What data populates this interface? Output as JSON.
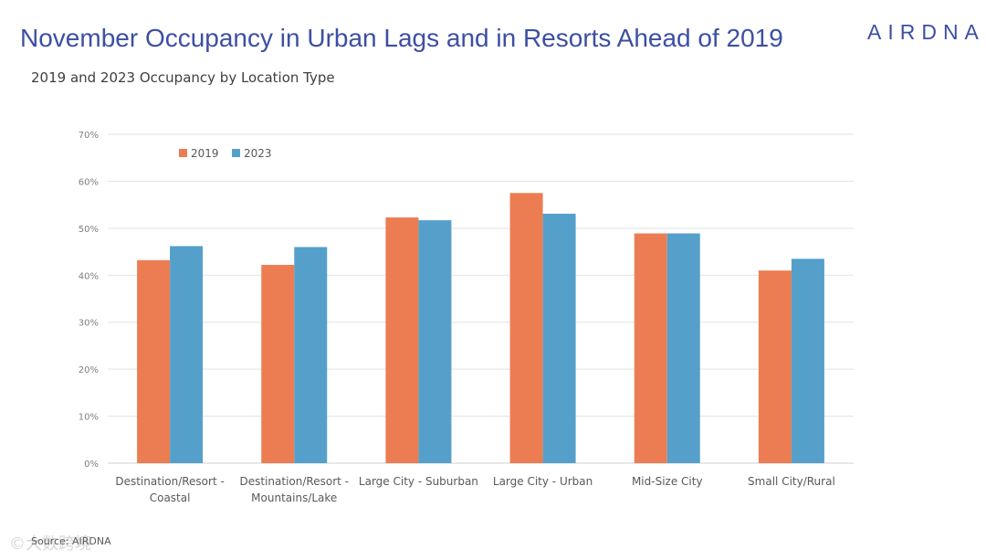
{
  "header": {
    "title": "November Occupancy in Urban Lags and in Resorts Ahead of 2019",
    "logo": "AIRDNA",
    "subtitle": "2019 and 2023 Occupancy by Location Type"
  },
  "footer": {
    "source": "Source: AIRDNA",
    "watermark": "©大数跨境"
  },
  "colors": {
    "title": "#3d4fa3",
    "series_2019": "#ec7d52",
    "series_2023": "#55a0cb",
    "grid": "#e3e3e3",
    "tick": "#7f7f7f"
  },
  "chart_data": {
    "type": "bar",
    "title": "2019 and 2023 Occupancy by Location Type",
    "xlabel": "",
    "ylabel": "",
    "ylim": [
      0,
      70
    ],
    "yticks": [
      0,
      10,
      20,
      30,
      40,
      50,
      60,
      70
    ],
    "ytick_labels": [
      "0%",
      "10%",
      "20%",
      "30%",
      "40%",
      "50%",
      "60%",
      "70%"
    ],
    "grid": true,
    "legend_position": "top-left",
    "categories": [
      [
        "Destination/Resort -",
        "Coastal"
      ],
      [
        "Destination/Resort -",
        "Mountains/Lake"
      ],
      [
        "Large City - Suburban"
      ],
      [
        "Large City - Urban"
      ],
      [
        "Mid-Size City"
      ],
      [
        "Small City/Rural"
      ]
    ],
    "series": [
      {
        "name": "2019",
        "color": "#ec7d52",
        "values": [
          43.2,
          42.2,
          52.3,
          57.5,
          48.9,
          41.0
        ]
      },
      {
        "name": "2023",
        "color": "#55a0cb",
        "values": [
          46.2,
          46.0,
          51.7,
          53.1,
          48.9,
          43.5
        ]
      }
    ]
  }
}
